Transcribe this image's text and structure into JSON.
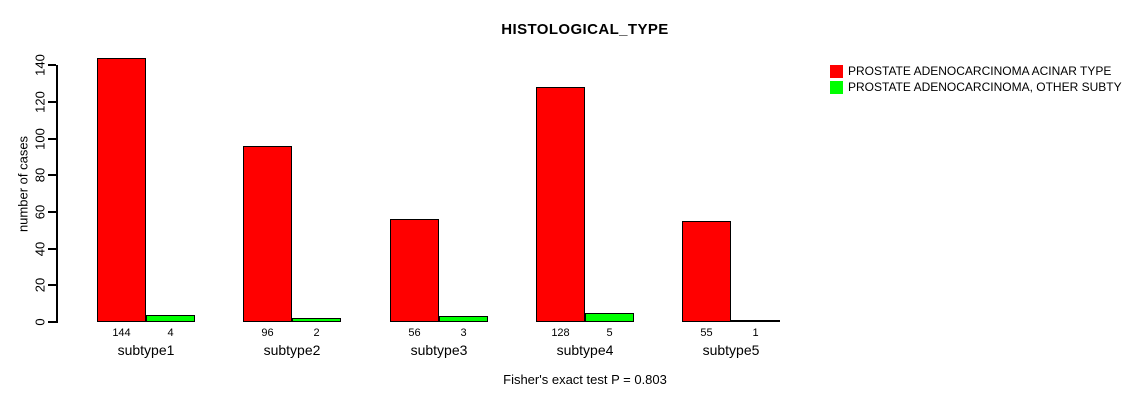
{
  "chart_data": {
    "type": "bar",
    "title": "HISTOLOGICAL_TYPE",
    "ylabel": "number of cases",
    "xlabel": "",
    "footer": "Fisher's exact test P = 0.803",
    "categories": [
      "subtype1",
      "subtype2",
      "subtype3",
      "subtype4",
      "subtype5"
    ],
    "series": [
      {
        "name": "PROSTATE ADENOCARCINOMA ACINAR TYPE",
        "color": "#ff0000",
        "values": [
          144,
          96,
          56,
          128,
          55
        ]
      },
      {
        "name": "PROSTATE ADENOCARCINOMA, OTHER SUBTY",
        "color": "#00ff00",
        "values": [
          4,
          2,
          3,
          5,
          1
        ]
      }
    ],
    "yticks": [
      0,
      20,
      40,
      60,
      80,
      100,
      120,
      140
    ],
    "ylim": [
      0,
      140
    ],
    "grid": false,
    "legend_position": "top-right",
    "background": "#ffffff",
    "bar_outline_color": "#000000"
  }
}
